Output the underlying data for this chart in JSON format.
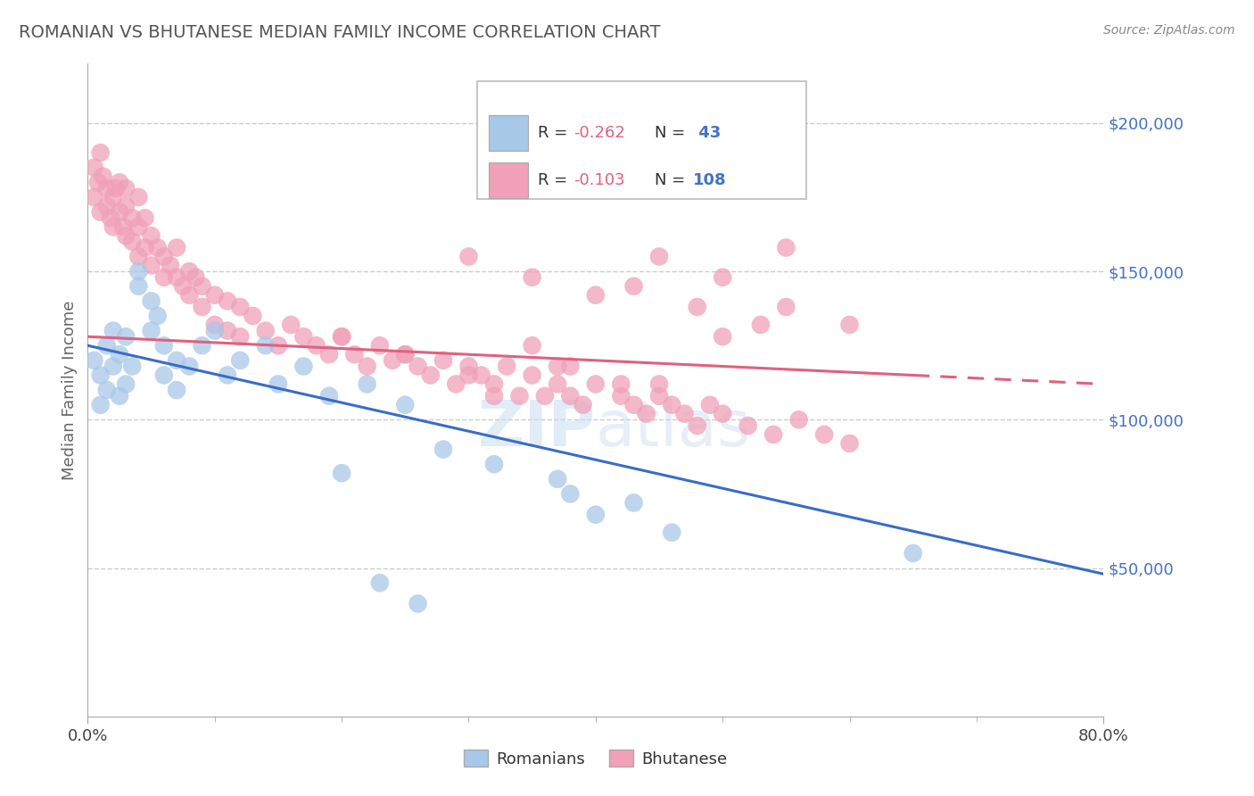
{
  "title": "ROMANIAN VS BHUTANESE MEDIAN FAMILY INCOME CORRELATION CHART",
  "source": "Source: ZipAtlas.com",
  "ylabel": "Median Family Income",
  "ytick_labels": [
    "$50,000",
    "$100,000",
    "$150,000",
    "$200,000"
  ],
  "ytick_values": [
    50000,
    100000,
    150000,
    200000
  ],
  "watermark": "ZIPatlas",
  "romanians_color": "#a8c8e8",
  "bhutanese_color": "#f0a0b8",
  "line_romanian_color": "#3a6cc8",
  "line_bhutanese_color": "#e06080",
  "background_color": "#ffffff",
  "grid_color": "#cccccc",
  "title_color": "#555555",
  "yticklabel_color": "#4472c4",
  "xlim": [
    0.0,
    0.8
  ],
  "ylim": [
    0,
    220000
  ],
  "roman_line_x0": 0.0,
  "roman_line_y0": 125000,
  "roman_line_x1": 0.8,
  "roman_line_y1": 48000,
  "bhutan_line_solid_x0": 0.0,
  "bhutan_line_solid_y0": 128000,
  "bhutan_line_solid_x1": 0.65,
  "bhutan_line_solid_y1": 115000,
  "bhutan_line_dash_x0": 0.65,
  "bhutan_line_dash_y0": 115000,
  "bhutan_line_dash_x1": 0.8,
  "bhutan_line_dash_y1": 112000,
  "roman_scatter_x": [
    0.005,
    0.01,
    0.01,
    0.015,
    0.015,
    0.02,
    0.02,
    0.025,
    0.025,
    0.03,
    0.03,
    0.035,
    0.04,
    0.04,
    0.05,
    0.05,
    0.055,
    0.06,
    0.06,
    0.07,
    0.07,
    0.08,
    0.09,
    0.1,
    0.11,
    0.12,
    0.14,
    0.15,
    0.17,
    0.19,
    0.22,
    0.25,
    0.28,
    0.32,
    0.37,
    0.38,
    0.4,
    0.43,
    0.46,
    0.65,
    0.2,
    0.23,
    0.26
  ],
  "roman_scatter_y": [
    120000,
    115000,
    105000,
    125000,
    110000,
    130000,
    118000,
    122000,
    108000,
    128000,
    112000,
    118000,
    145000,
    150000,
    140000,
    130000,
    135000,
    125000,
    115000,
    120000,
    110000,
    118000,
    125000,
    130000,
    115000,
    120000,
    125000,
    112000,
    118000,
    108000,
    112000,
    105000,
    90000,
    85000,
    80000,
    75000,
    68000,
    72000,
    62000,
    55000,
    82000,
    45000,
    38000
  ],
  "bhutan_scatter_x": [
    0.005,
    0.005,
    0.008,
    0.01,
    0.01,
    0.012,
    0.015,
    0.015,
    0.018,
    0.02,
    0.02,
    0.022,
    0.025,
    0.025,
    0.028,
    0.03,
    0.03,
    0.03,
    0.035,
    0.035,
    0.04,
    0.04,
    0.04,
    0.045,
    0.045,
    0.05,
    0.05,
    0.055,
    0.06,
    0.06,
    0.065,
    0.07,
    0.07,
    0.075,
    0.08,
    0.08,
    0.085,
    0.09,
    0.09,
    0.1,
    0.1,
    0.11,
    0.11,
    0.12,
    0.12,
    0.13,
    0.14,
    0.15,
    0.16,
    0.17,
    0.18,
    0.19,
    0.2,
    0.21,
    0.22,
    0.23,
    0.24,
    0.25,
    0.26,
    0.27,
    0.28,
    0.29,
    0.3,
    0.31,
    0.32,
    0.33,
    0.34,
    0.35,
    0.36,
    0.37,
    0.38,
    0.39,
    0.4,
    0.42,
    0.43,
    0.44,
    0.45,
    0.46,
    0.47,
    0.48,
    0.49,
    0.5,
    0.52,
    0.54,
    0.56,
    0.58,
    0.6,
    0.43,
    0.48,
    0.53,
    0.3,
    0.35,
    0.4,
    0.5,
    0.35,
    0.38,
    0.42,
    0.32,
    0.37,
    0.2,
    0.25,
    0.3,
    0.45,
    0.55,
    0.45,
    0.5,
    0.55,
    0.6
  ],
  "bhutan_scatter_y": [
    175000,
    185000,
    180000,
    170000,
    190000,
    182000,
    172000,
    178000,
    168000,
    175000,
    165000,
    178000,
    170000,
    180000,
    165000,
    172000,
    162000,
    178000,
    168000,
    160000,
    165000,
    175000,
    155000,
    168000,
    158000,
    162000,
    152000,
    158000,
    155000,
    148000,
    152000,
    148000,
    158000,
    145000,
    150000,
    142000,
    148000,
    145000,
    138000,
    142000,
    132000,
    140000,
    130000,
    138000,
    128000,
    135000,
    130000,
    125000,
    132000,
    128000,
    125000,
    122000,
    128000,
    122000,
    118000,
    125000,
    120000,
    122000,
    118000,
    115000,
    120000,
    112000,
    118000,
    115000,
    112000,
    118000,
    108000,
    115000,
    108000,
    112000,
    108000,
    105000,
    112000,
    108000,
    105000,
    102000,
    108000,
    105000,
    102000,
    98000,
    105000,
    102000,
    98000,
    95000,
    100000,
    95000,
    92000,
    145000,
    138000,
    132000,
    155000,
    148000,
    142000,
    128000,
    125000,
    118000,
    112000,
    108000,
    118000,
    128000,
    122000,
    115000,
    112000,
    158000,
    155000,
    148000,
    138000,
    132000
  ]
}
